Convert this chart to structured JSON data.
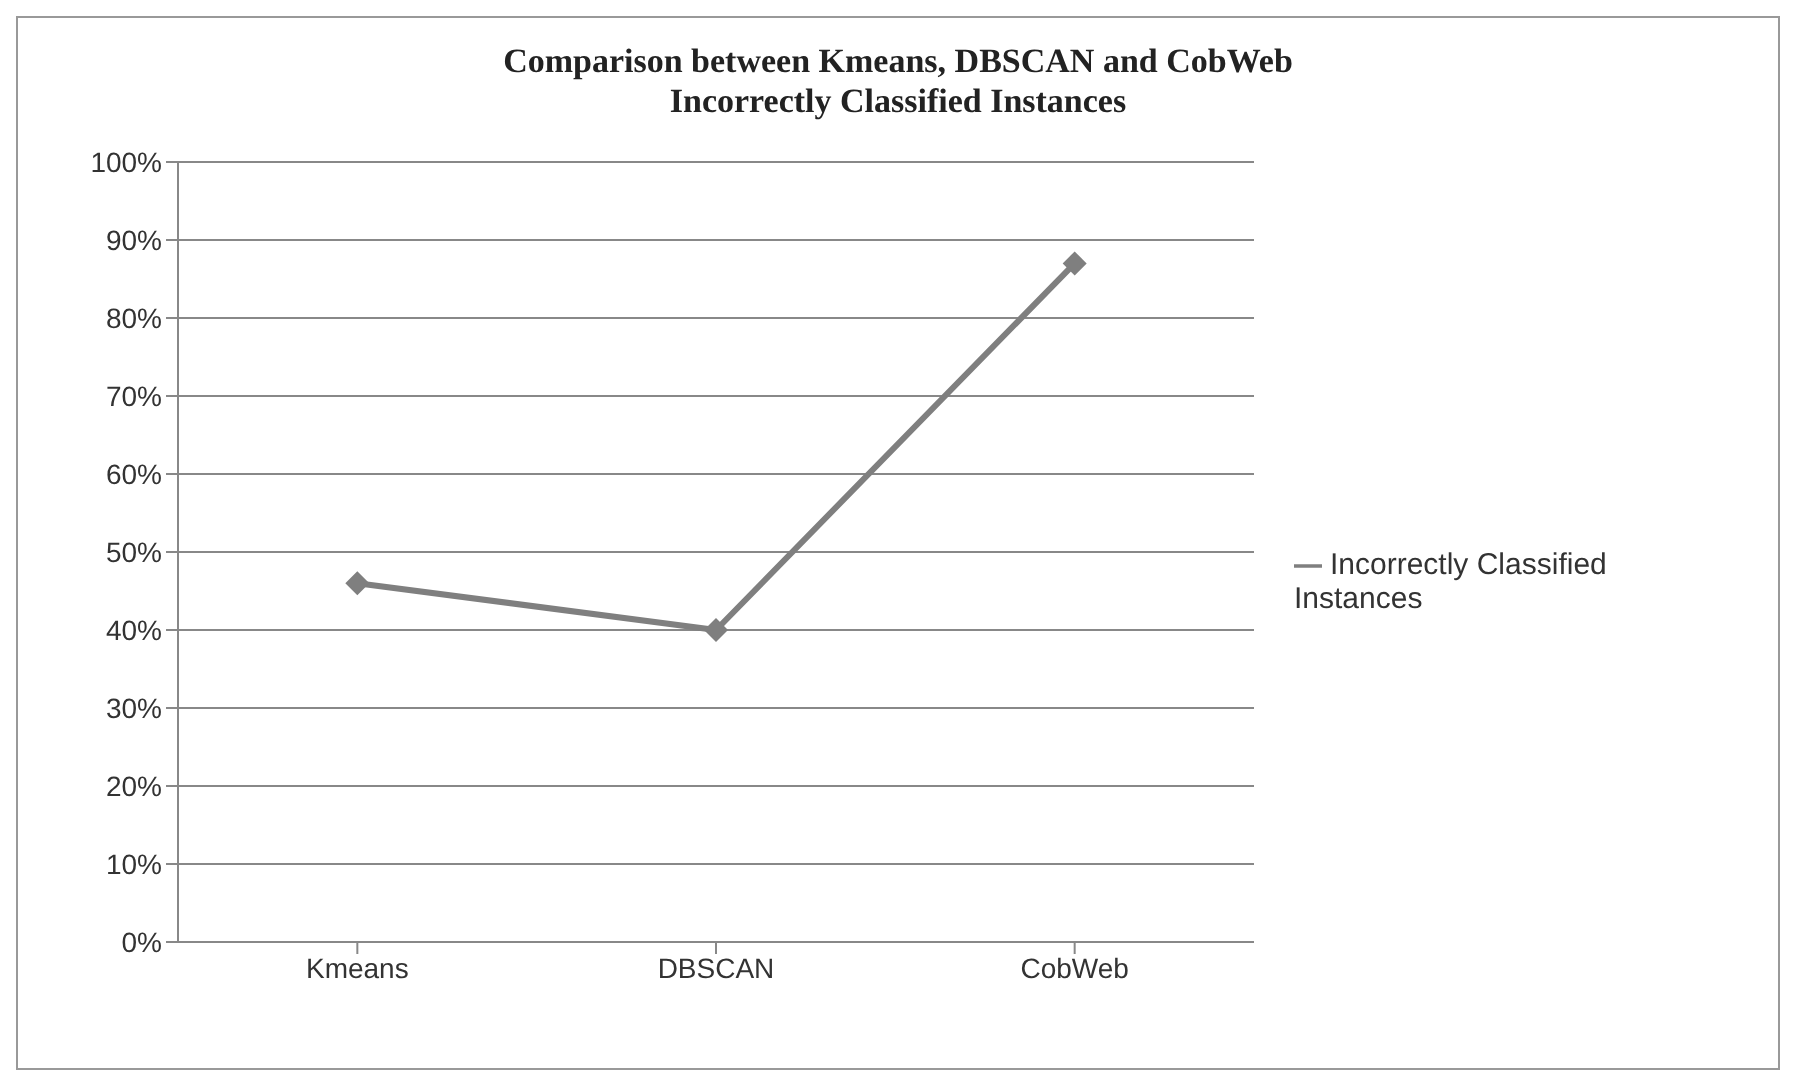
{
  "chart_data": {
    "type": "line",
    "title": "Comparison between Kmeans, DBSCAN and CobWeb",
    "subtitle": "Incorrectly Classified Instances",
    "categories": [
      "Kmeans",
      "DBSCAN",
      "CobWeb"
    ],
    "series": [
      {
        "name": "Incorrectly Classified Instances",
        "color": "#7f7f7f",
        "values": [
          46,
          40,
          87
        ]
      }
    ],
    "ylim": [
      0,
      100
    ],
    "yticks": [
      {
        "value": 0,
        "label": "0%"
      },
      {
        "value": 10,
        "label": "10%"
      },
      {
        "value": 20,
        "label": "20%"
      },
      {
        "value": 30,
        "label": "30%"
      },
      {
        "value": 40,
        "label": "40%"
      },
      {
        "value": 50,
        "label": "50%"
      },
      {
        "value": 60,
        "label": "60%"
      },
      {
        "value": 70,
        "label": "70%"
      },
      {
        "value": 80,
        "label": "80%"
      },
      {
        "value": 90,
        "label": "90%"
      },
      {
        "value": 100,
        "label": "100%"
      }
    ],
    "grid": "y",
    "legend": "right",
    "marker": "diamond",
    "line_style": "solid"
  }
}
